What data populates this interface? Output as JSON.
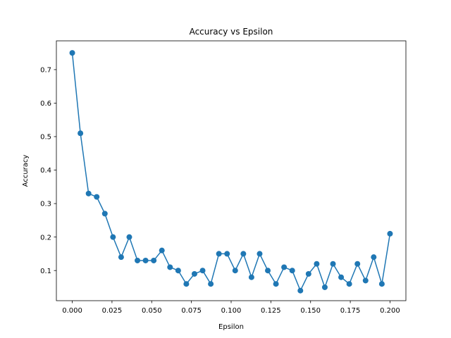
{
  "chart_data": {
    "type": "line",
    "title": "Accuracy vs Epsilon",
    "xlabel": "Epsilon",
    "ylabel": "Accuracy",
    "xlim": [
      -0.01,
      0.21
    ],
    "ylim": [
      0.01,
      0.786
    ],
    "xticks": [
      0.0,
      0.025,
      0.05,
      0.075,
      0.1,
      0.125,
      0.15,
      0.175,
      0.2
    ],
    "xtick_labels": [
      "0.000",
      "0.025",
      "0.050",
      "0.075",
      "0.100",
      "0.125",
      "0.150",
      "0.175",
      "0.200"
    ],
    "yticks": [
      0.1,
      0.2,
      0.3,
      0.4,
      0.5,
      0.6,
      0.7
    ],
    "ytick_labels": [
      "0.1",
      "0.2",
      "0.3",
      "0.4",
      "0.5",
      "0.6",
      "0.7"
    ],
    "grid": false,
    "marker": "circle",
    "colors": {
      "series": "#1f77b4",
      "axes": "#000000",
      "background": "#ffffff"
    },
    "series": [
      {
        "x": [
          0.0,
          0.00513,
          0.01026,
          0.01538,
          0.02051,
          0.02564,
          0.03077,
          0.0359,
          0.04103,
          0.04615,
          0.05128,
          0.05641,
          0.06154,
          0.06667,
          0.07179,
          0.07692,
          0.08205,
          0.08718,
          0.09231,
          0.09744,
          0.10256,
          0.10769,
          0.11282,
          0.11795,
          0.12308,
          0.12821,
          0.13333,
          0.13846,
          0.14359,
          0.14872,
          0.15385,
          0.15897,
          0.1641,
          0.16923,
          0.17436,
          0.17949,
          0.18462,
          0.18974,
          0.19487,
          0.2
        ],
        "values": [
          0.75,
          0.51,
          0.33,
          0.32,
          0.27,
          0.2,
          0.14,
          0.2,
          0.13,
          0.13,
          0.13,
          0.16,
          0.11,
          0.1,
          0.06,
          0.09,
          0.1,
          0.06,
          0.15,
          0.15,
          0.1,
          0.15,
          0.08,
          0.15,
          0.1,
          0.06,
          0.11,
          0.1,
          0.04,
          0.09,
          0.12,
          0.05,
          0.12,
          0.08,
          0.06,
          0.12,
          0.07,
          0.14,
          0.06,
          0.21
        ]
      }
    ]
  }
}
